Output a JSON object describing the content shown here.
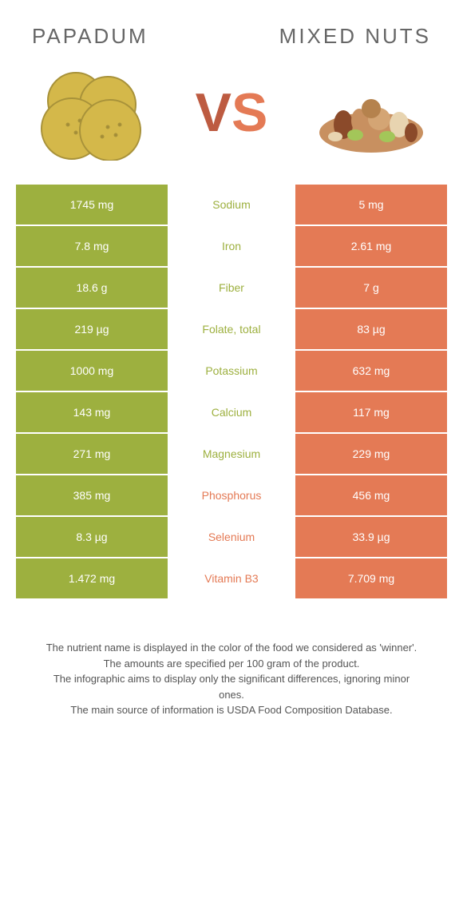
{
  "colors": {
    "left_bg": "#9db03f",
    "right_bg": "#e47a55",
    "left_text": "#9db03f",
    "right_text": "#e47a55",
    "title_text": "#666666"
  },
  "header": {
    "left_title": "Papadum",
    "right_title": "Mixed Nuts",
    "vs_v": "V",
    "vs_s": "S"
  },
  "rows": [
    {
      "left": "1745 mg",
      "mid": "Sodium",
      "right": "5 mg",
      "winner": "left"
    },
    {
      "left": "7.8 mg",
      "mid": "Iron",
      "right": "2.61 mg",
      "winner": "left"
    },
    {
      "left": "18.6 g",
      "mid": "Fiber",
      "right": "7 g",
      "winner": "left"
    },
    {
      "left": "219 µg",
      "mid": "Folate, total",
      "right": "83 µg",
      "winner": "left"
    },
    {
      "left": "1000 mg",
      "mid": "Potassium",
      "right": "632 mg",
      "winner": "left"
    },
    {
      "left": "143 mg",
      "mid": "Calcium",
      "right": "117 mg",
      "winner": "left"
    },
    {
      "left": "271 mg",
      "mid": "Magnesium",
      "right": "229 mg",
      "winner": "left"
    },
    {
      "left": "385 mg",
      "mid": "Phosphorus",
      "right": "456 mg",
      "winner": "right"
    },
    {
      "left": "8.3 µg",
      "mid": "Selenium",
      "right": "33.9 µg",
      "winner": "right"
    },
    {
      "left": "1.472 mg",
      "mid": "Vitamin B3",
      "right": "7.709 mg",
      "winner": "right"
    }
  ],
  "footer": {
    "line1": "The nutrient name is displayed in the color of the food we considered as 'winner'.",
    "line2": "The amounts are specified per 100 gram of the product.",
    "line3": "The infographic aims to display only the significant differences, ignoring minor ones.",
    "line4": "The main source of information is USDA Food Composition Database."
  }
}
